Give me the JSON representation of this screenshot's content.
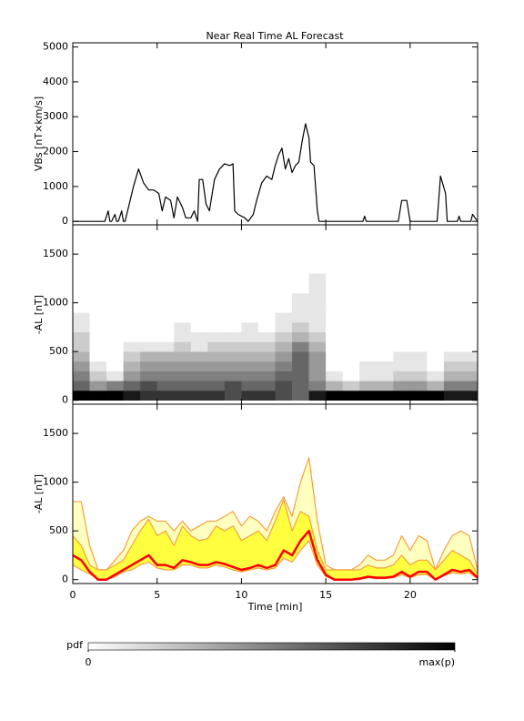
{
  "chart_data": [
    {
      "type": "line",
      "title": "Near Real Time AL Forecast",
      "ylabel": "VBs [nT×km/s]",
      "color": "#000000",
      "xlim": [
        0,
        24
      ],
      "xticks": [
        0,
        5,
        10,
        15,
        20
      ],
      "ylim": [
        -100,
        5120
      ],
      "yticks": [
        0,
        1000,
        2000,
        3000,
        4000,
        5000
      ],
      "x": [
        0,
        1.9,
        2.1,
        2.2,
        2.3,
        2.5,
        2.6,
        2.7,
        2.9,
        3.0,
        3.1,
        3.3,
        3.6,
        3.9,
        4.2,
        4.5,
        4.8,
        5.1,
        5.3,
        5.5,
        5.8,
        6.0,
        6.2,
        6.5,
        6.7,
        7.0,
        7.2,
        7.4,
        7.5,
        7.7,
        7.9,
        8.1,
        8.4,
        8.7,
        9.0,
        9.3,
        9.5,
        9.6,
        9.8,
        10.2,
        10.4,
        10.7,
        10.9,
        11.2,
        11.5,
        11.8,
        12.0,
        12.2,
        12.4,
        12.6,
        12.8,
        13.0,
        13.2,
        13.4,
        13.6,
        13.8,
        14.0,
        14.1,
        14.3,
        14.5,
        14.6,
        17.2,
        17.3,
        17.4,
        19.3,
        19.5,
        19.8,
        20.0,
        21.6,
        21.8,
        22.1,
        22.2,
        22.8,
        22.9,
        23.0,
        23.6,
        23.7,
        24
      ],
      "values": [
        0,
        0,
        300,
        0,
        0,
        200,
        0,
        0,
        300,
        0,
        0,
        400,
        1000,
        1500,
        1100,
        900,
        900,
        800,
        300,
        700,
        600,
        100,
        700,
        400,
        100,
        100,
        300,
        0,
        1200,
        1200,
        500,
        300,
        1200,
        1500,
        1650,
        1600,
        1650,
        300,
        200,
        100,
        0,
        200,
        600,
        1100,
        1300,
        1200,
        1600,
        1900,
        2100,
        1500,
        1800,
        1400,
        1600,
        1700,
        2300,
        2800,
        2400,
        1700,
        1600,
        300,
        0,
        0,
        150,
        0,
        0,
        600,
        600,
        0,
        0,
        1300,
        800,
        0,
        0,
        150,
        0,
        0,
        200,
        0
      ]
    },
    {
      "type": "heatmap",
      "ylabel": "-AL [nT]",
      "xlim": [
        0,
        24
      ],
      "xticks": [
        0,
        5,
        10,
        15,
        20
      ],
      "ylim": [
        -40,
        1800
      ],
      "yticks": [
        0,
        500,
        1000,
        1500
      ],
      "xbins": [
        0,
        1,
        2,
        3,
        4,
        5,
        6,
        7,
        8,
        9,
        10,
        11,
        12,
        13,
        14,
        15,
        16,
        17,
        18,
        19,
        20,
        21,
        22,
        23,
        24
      ],
      "ybins": [
        0,
        100,
        200,
        300,
        400,
        500,
        600,
        700,
        800,
        900,
        1000,
        1100,
        1200,
        1300
      ],
      "z": [
        [
          1,
          0.6,
          0.5,
          0.4,
          0.3,
          0.2,
          0.2,
          0.1,
          0.1,
          0,
          0,
          0,
          0
        ],
        [
          1,
          0.4,
          0.2,
          0.1,
          0,
          0,
          0,
          0,
          0,
          0,
          0,
          0,
          0
        ],
        [
          1,
          0.5,
          0.1,
          0,
          0,
          0,
          0,
          0,
          0,
          0,
          0,
          0,
          0
        ],
        [
          0.9,
          0.6,
          0.4,
          0.3,
          0.2,
          0.1,
          0,
          0,
          0,
          0,
          0,
          0,
          0
        ],
        [
          0.8,
          0.7,
          0.5,
          0.4,
          0.3,
          0.1,
          0,
          0,
          0,
          0,
          0,
          0,
          0
        ],
        [
          0.8,
          0.6,
          0.5,
          0.4,
          0.3,
          0.1,
          0,
          0,
          0,
          0,
          0,
          0,
          0
        ],
        [
          0.8,
          0.6,
          0.5,
          0.4,
          0.3,
          0.2,
          0.1,
          0.1,
          0,
          0,
          0,
          0,
          0
        ],
        [
          0.8,
          0.6,
          0.5,
          0.4,
          0.3,
          0.1,
          0.1,
          0,
          0,
          0,
          0,
          0,
          0
        ],
        [
          0.8,
          0.6,
          0.5,
          0.4,
          0.3,
          0.2,
          0.1,
          0,
          0,
          0,
          0,
          0,
          0
        ],
        [
          0.7,
          0.7,
          0.5,
          0.4,
          0.3,
          0.2,
          0.1,
          0,
          0,
          0,
          0,
          0,
          0
        ],
        [
          0.8,
          0.6,
          0.5,
          0.4,
          0.3,
          0.2,
          0.1,
          0.1,
          0,
          0,
          0,
          0,
          0
        ],
        [
          0.8,
          0.6,
          0.5,
          0.4,
          0.3,
          0.2,
          0.1,
          0,
          0,
          0,
          0,
          0,
          0
        ],
        [
          0.7,
          0.7,
          0.6,
          0.5,
          0.4,
          0.3,
          0.2,
          0.1,
          0.1,
          0,
          0,
          0,
          0
        ],
        [
          0.6,
          0.6,
          0.6,
          0.6,
          0.6,
          0.5,
          0.3,
          0.2,
          0.1,
          0.1,
          0.1,
          0,
          0
        ],
        [
          0.9,
          0.5,
          0.4,
          0.4,
          0.4,
          0.3,
          0.2,
          0.1,
          0.1,
          0.1,
          0.1,
          0.1,
          0.1
        ],
        [
          1,
          0.3,
          0.1,
          0,
          0,
          0,
          0,
          0,
          0,
          0,
          0,
          0,
          0
        ],
        [
          1,
          0.2,
          0,
          0,
          0,
          0,
          0,
          0,
          0,
          0,
          0,
          0,
          0
        ],
        [
          1,
          0.3,
          0.1,
          0.1,
          0,
          0,
          0,
          0,
          0,
          0,
          0,
          0,
          0
        ],
        [
          1,
          0.3,
          0.1,
          0.1,
          0,
          0,
          0,
          0,
          0,
          0,
          0,
          0,
          0
        ],
        [
          1,
          0.4,
          0.2,
          0.1,
          0.1,
          0,
          0,
          0,
          0,
          0,
          0,
          0,
          0
        ],
        [
          1,
          0.4,
          0.2,
          0.1,
          0.1,
          0,
          0,
          0,
          0,
          0,
          0,
          0,
          0
        ],
        [
          1,
          0.3,
          0.1,
          0,
          0,
          0,
          0,
          0,
          0,
          0,
          0,
          0,
          0
        ],
        [
          0.9,
          0.5,
          0.3,
          0.2,
          0.1,
          0,
          0,
          0,
          0,
          0,
          0,
          0,
          0
        ],
        [
          0.9,
          0.5,
          0.3,
          0.2,
          0.1,
          0,
          0,
          0,
          0,
          0,
          0,
          0,
          0
        ]
      ],
      "colorbar": {
        "label": "pdf",
        "ticks": [
          0,
          {
            "value": 1,
            "label": "max(p)"
          }
        ]
      }
    },
    {
      "type": "line",
      "ylabel": "-AL [nT]",
      "xlabel": "Time [min]",
      "xlim": [
        0,
        24
      ],
      "xticks": [
        0,
        5,
        10,
        15,
        20
      ],
      "ylim": [
        -40,
        1800
      ],
      "yticks": [
        0,
        500,
        1000,
        1500
      ],
      "x": [
        0,
        0.5,
        1,
        1.5,
        2,
        2.5,
        3,
        3.5,
        4,
        4.5,
        5,
        5.5,
        6,
        6.5,
        7,
        7.5,
        8,
        8.5,
        9,
        9.5,
        10,
        10.5,
        11,
        11.5,
        12,
        12.5,
        13,
        13.5,
        14,
        14.5,
        15,
        15.5,
        16,
        16.5,
        17,
        17.5,
        18,
        18.5,
        19,
        19.5,
        20,
        20.5,
        21,
        21.5,
        22,
        22.5,
        23,
        23.5,
        24
      ],
      "series": [
        {
          "color": "#f5a040",
          "fill": "#ffffc0",
          "fill_to": 1,
          "values": [
            800,
            800,
            350,
            100,
            100,
            200,
            300,
            500,
            600,
            650,
            600,
            600,
            500,
            600,
            500,
            550,
            600,
            600,
            650,
            700,
            550,
            650,
            600,
            500,
            700,
            850,
            650,
            1000,
            1250,
            600,
            150,
            100,
            100,
            100,
            150,
            250,
            200,
            200,
            250,
            450,
            300,
            450,
            400,
            100,
            300,
            450,
            500,
            450,
            100
          ]
        },
        {
          "color": "#f5a040",
          "fill": "#ffff40",
          "fill_to": 2,
          "values": [
            450,
            350,
            150,
            100,
            100,
            150,
            200,
            350,
            500,
            620,
            450,
            500,
            350,
            550,
            450,
            400,
            420,
            550,
            500,
            550,
            400,
            450,
            500,
            400,
            600,
            820,
            500,
            700,
            650,
            300,
            100,
            100,
            100,
            100,
            100,
            150,
            120,
            120,
            150,
            250,
            150,
            200,
            200,
            100,
            200,
            300,
            250,
            200,
            60
          ]
        },
        {
          "color": "#f5a040",
          "values": [
            150,
            100,
            60,
            0,
            0,
            30,
            80,
            100,
            150,
            180,
            120,
            100,
            100,
            150,
            150,
            120,
            120,
            150,
            130,
            100,
            80,
            100,
            120,
            100,
            120,
            220,
            180,
            300,
            400,
            150,
            30,
            0,
            0,
            0,
            0,
            20,
            10,
            10,
            20,
            50,
            20,
            50,
            50,
            0,
            40,
            70,
            60,
            70,
            10
          ]
        },
        {
          "color": "#ff0000",
          "width": 2.5,
          "values": [
            250,
            200,
            80,
            0,
            0,
            50,
            100,
            150,
            200,
            250,
            150,
            150,
            120,
            200,
            180,
            150,
            150,
            180,
            160,
            130,
            100,
            120,
            150,
            120,
            150,
            300,
            250,
            400,
            500,
            200,
            50,
            0,
            0,
            0,
            10,
            30,
            20,
            20,
            30,
            80,
            30,
            80,
            80,
            0,
            50,
            100,
            80,
            100,
            20
          ]
        }
      ]
    }
  ]
}
